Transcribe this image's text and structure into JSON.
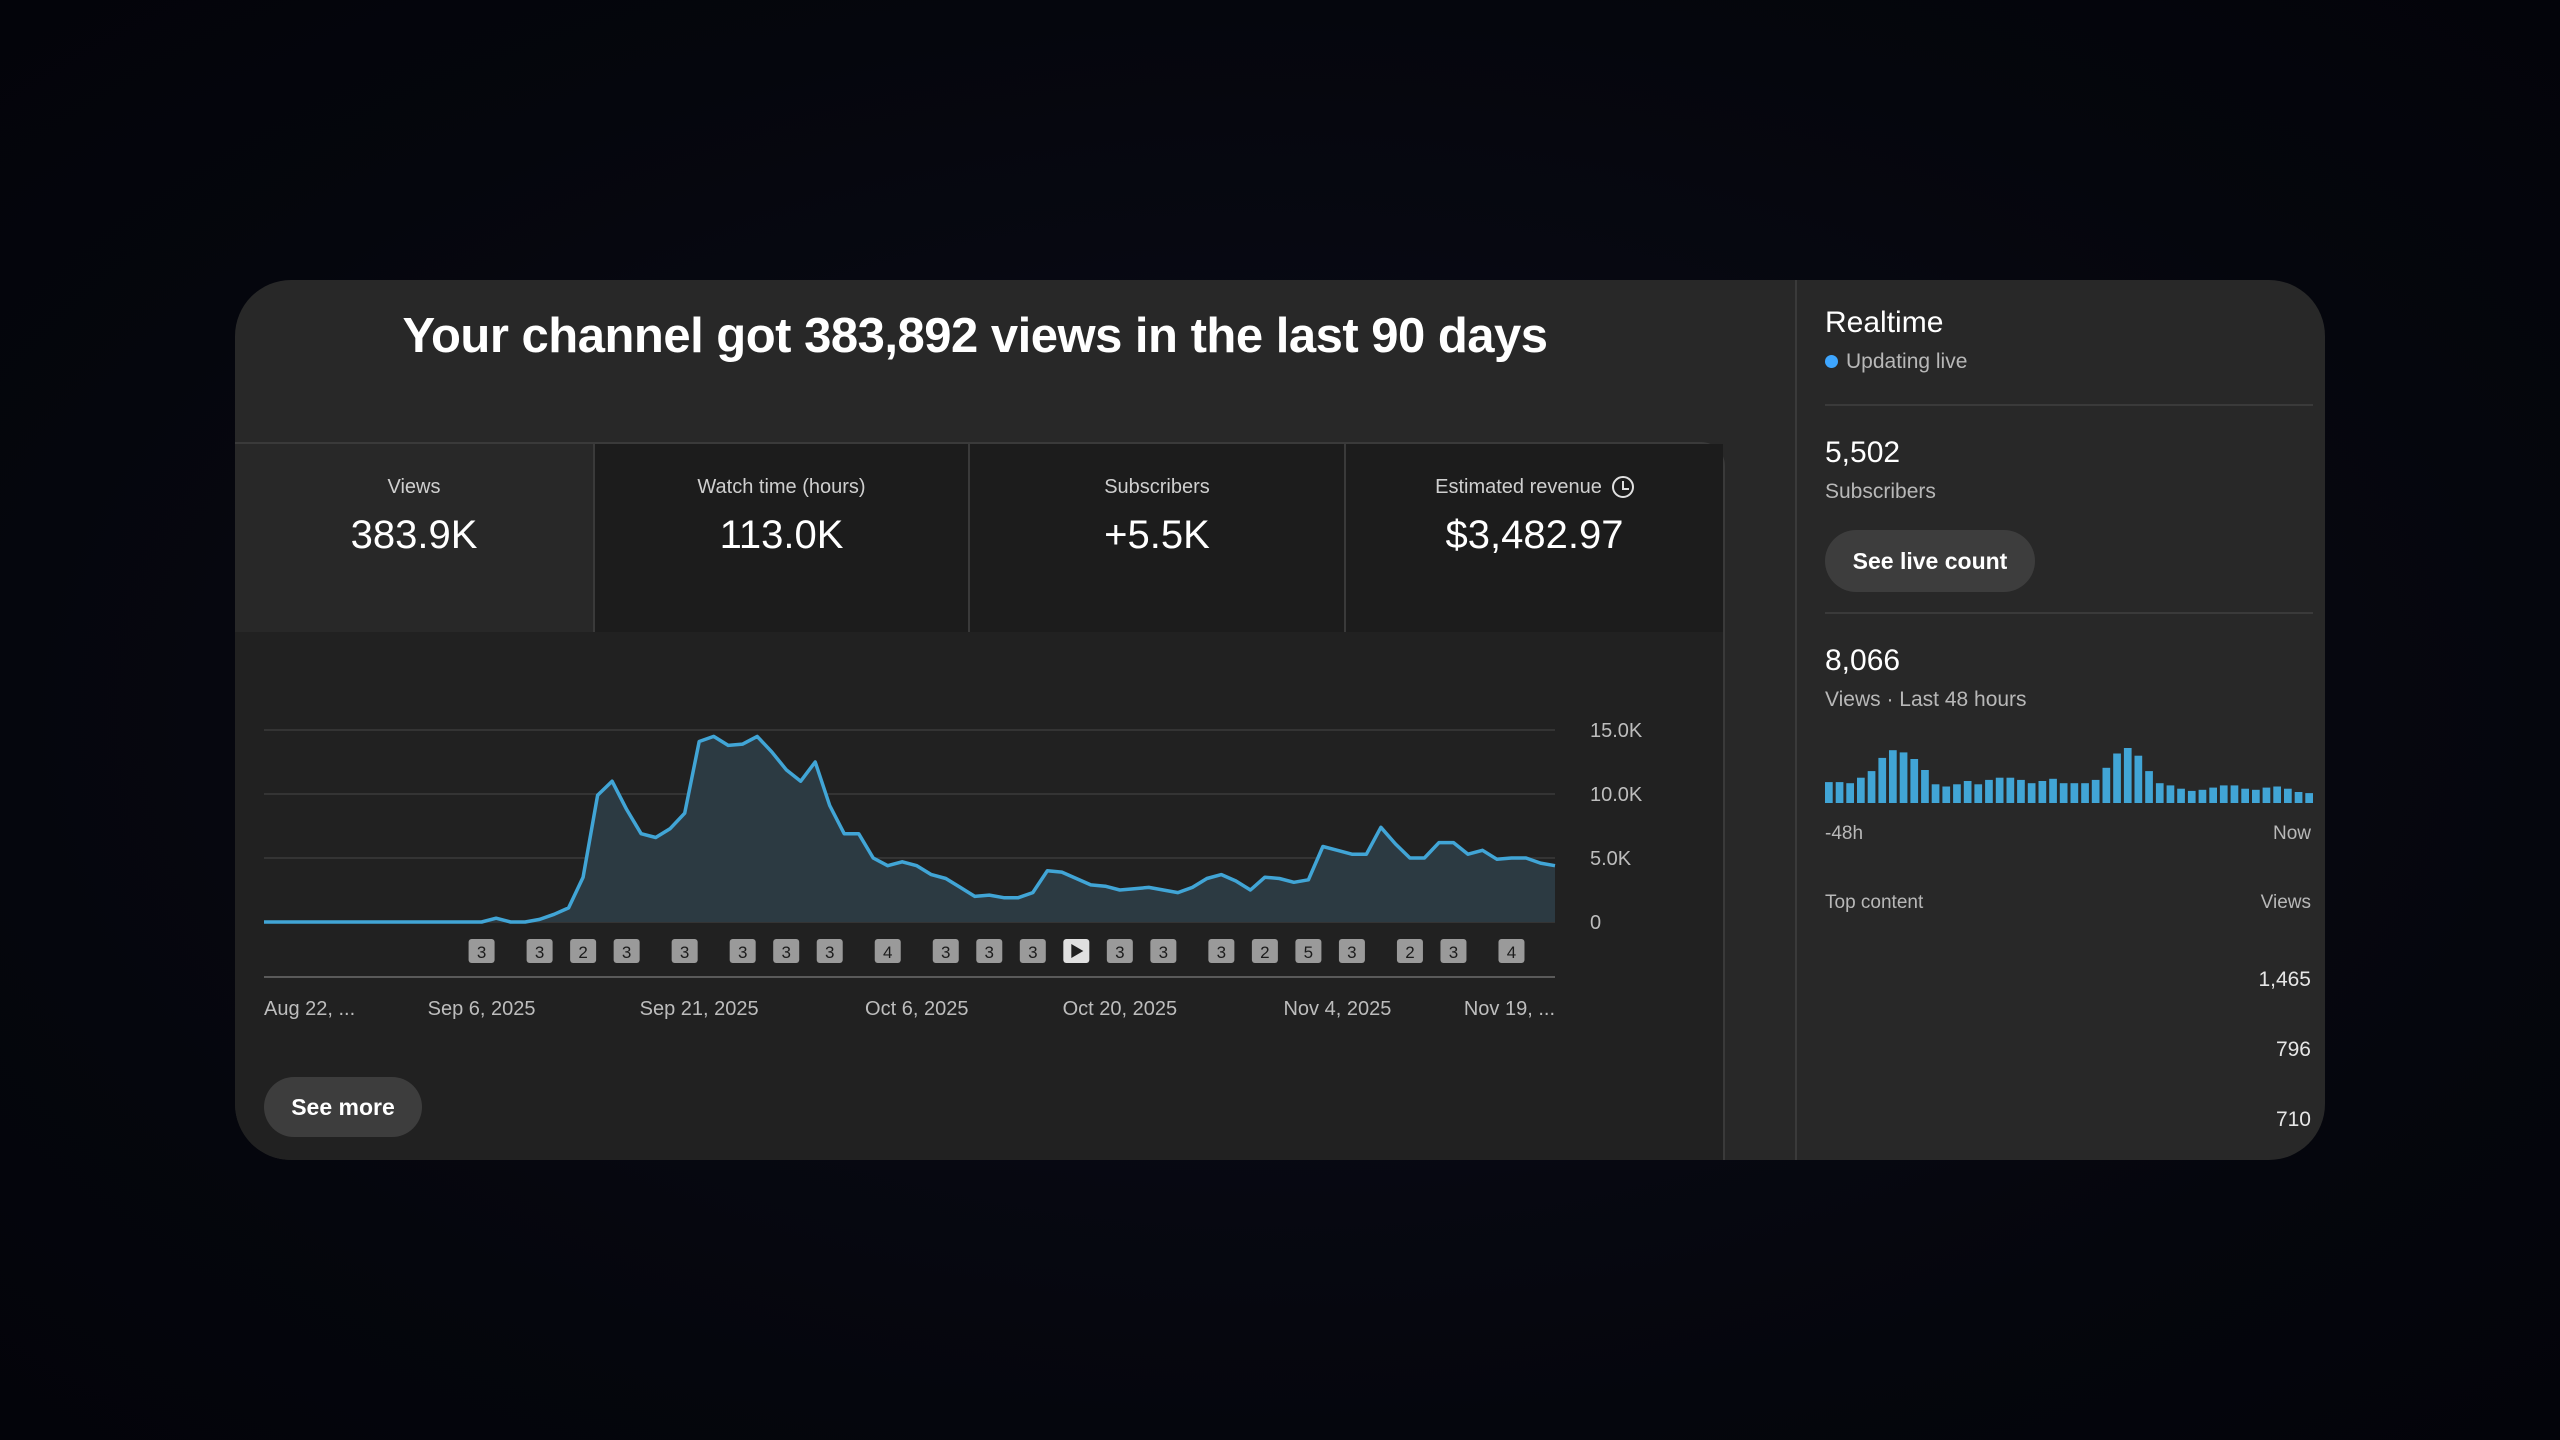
{
  "headline": "Your channel got 383,892 views in the last 90 days",
  "metrics": [
    {
      "label": "Views",
      "value": "383.9K"
    },
    {
      "label": "Watch time (hours)",
      "value": "113.0K"
    },
    {
      "label": "Subscribers",
      "value": "+5.5K"
    },
    {
      "label": "Estimated revenue",
      "value": "$3,482.97",
      "icon": "clock-icon"
    }
  ],
  "chart_data": {
    "type": "area",
    "ylim": [
      0,
      15000
    ],
    "yticks": [
      "0",
      "5.0K",
      "10.0K",
      "15.0K"
    ],
    "xticks": [
      "Aug 22, ...",
      "Sep 6, 2025",
      "Sep 21, 2025",
      "Oct 6, 2025",
      "Oct 20, 2025",
      "Nov 4, 2025",
      "Nov 19, ..."
    ],
    "xtick_index": [
      0,
      15,
      30,
      45,
      59,
      74,
      89
    ],
    "values": [
      0,
      0,
      0,
      0,
      0,
      0,
      0,
      0,
      0,
      0,
      0,
      0,
      0,
      0,
      0,
      0,
      300,
      0,
      0,
      200,
      600,
      1100,
      3500,
      9900,
      11000,
      8800,
      6900,
      6600,
      7300,
      8500,
      14100,
      14500,
      13800,
      13900,
      14500,
      13300,
      11900,
      11000,
      12500,
      9100,
      6900,
      6900,
      5000,
      4400,
      4700,
      4400,
      3700,
      3400,
      2700,
      2000,
      2100,
      1900,
      1900,
      2300,
      4000,
      3900,
      3400,
      2900,
      2800,
      2500,
      2600,
      2700,
      2500,
      2300,
      2700,
      3400,
      3700,
      3200,
      2500,
      3500,
      3400,
      3100,
      3300,
      5900,
      5600,
      5300,
      5300,
      7400,
      6100,
      5000,
      5000,
      6200,
      6200,
      5300,
      5600,
      4900,
      5000,
      5000,
      4600,
      4400
    ],
    "markers": [
      {
        "i": 15,
        "label": "3"
      },
      {
        "i": 19,
        "label": "3"
      },
      {
        "i": 22,
        "label": "2"
      },
      {
        "i": 25,
        "label": "3"
      },
      {
        "i": 29,
        "label": "3"
      },
      {
        "i": 33,
        "label": "3"
      },
      {
        "i": 36,
        "label": "3"
      },
      {
        "i": 39,
        "label": "3"
      },
      {
        "i": 43,
        "label": "4"
      },
      {
        "i": 47,
        "label": "3"
      },
      {
        "i": 50,
        "label": "3"
      },
      {
        "i": 53,
        "label": "3"
      },
      {
        "i": 56,
        "label": "play"
      },
      {
        "i": 59,
        "label": "3"
      },
      {
        "i": 62,
        "label": "3"
      },
      {
        "i": 66,
        "label": "3"
      },
      {
        "i": 69,
        "label": "2"
      },
      {
        "i": 72,
        "label": "5"
      },
      {
        "i": 75,
        "label": "3"
      },
      {
        "i": 79,
        "label": "2"
      },
      {
        "i": 82,
        "label": "3"
      },
      {
        "i": 86,
        "label": "4"
      }
    ],
    "line_color": "#41a5d6",
    "fill_color": "#2c3a42",
    "grid": true
  },
  "see_more": "See more",
  "realtime": {
    "title": "Realtime",
    "status": "Updating live",
    "subscribers": "5,502",
    "subscribers_label": "Subscribers",
    "live_count_button": "See live count",
    "views": "8,066",
    "views_label": "Views · Last 48 hours",
    "axis_start": "-48h",
    "axis_end": "Now",
    "hourly_views": [
      0.38,
      0.38,
      0.36,
      0.46,
      0.58,
      0.82,
      0.96,
      0.92,
      0.8,
      0.6,
      0.34,
      0.3,
      0.34,
      0.4,
      0.34,
      0.42,
      0.46,
      0.46,
      0.42,
      0.36,
      0.4,
      0.44,
      0.36,
      0.36,
      0.36,
      0.42,
      0.64,
      0.9,
      1.0,
      0.86,
      0.58,
      0.36,
      0.32,
      0.26,
      0.22,
      0.24,
      0.28,
      0.32,
      0.32,
      0.26,
      0.24,
      0.28,
      0.3,
      0.26,
      0.2,
      0.18
    ],
    "bar_color": "#41a5d6",
    "top_content_label": "Top content",
    "views_col_label": "Views",
    "top_content": [
      "1,465",
      "796",
      "710"
    ]
  }
}
